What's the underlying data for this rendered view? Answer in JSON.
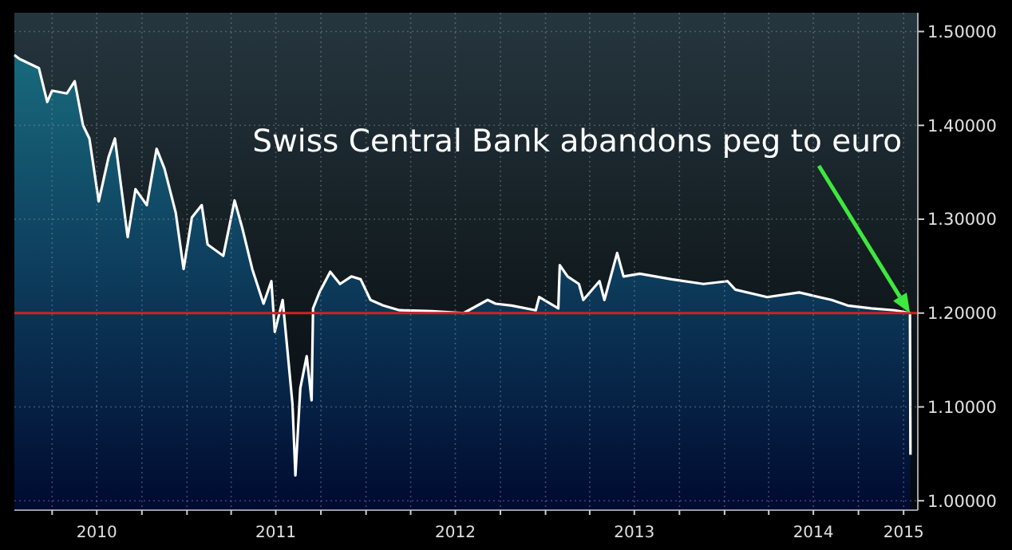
{
  "chart_data": {
    "type": "area",
    "x": [
      "2010-01-14",
      "2010-01-24",
      "2010-03-05",
      "2010-03-22",
      "2010-04-01",
      "2010-05-01",
      "2010-05-17",
      "2010-06-03",
      "2010-06-16",
      "2010-07-05",
      "2010-07-25",
      "2010-08-07",
      "2010-09-02",
      "2010-09-18",
      "2010-10-11",
      "2010-10-31",
      "2010-11-16",
      "2010-12-09",
      "2010-12-25",
      "2011-01-11",
      "2011-01-31",
      "2011-02-12",
      "2011-03-16",
      "2011-04-08",
      "2011-04-24",
      "2011-05-14",
      "2011-06-06",
      "2011-06-22",
      "2011-06-29",
      "2011-07-15",
      "2011-07-25",
      "2011-08-04",
      "2011-08-10",
      "2011-08-20",
      "2011-09-02",
      "2011-09-12",
      "2011-09-15",
      "2011-09-28",
      "2011-10-20",
      "2011-11-09",
      "2011-12-02",
      "2011-12-21",
      "2012-01-10",
      "2012-02-05",
      "2012-03-09",
      "2012-05-14",
      "2012-07-18",
      "2012-09-05",
      "2012-09-21",
      "2012-10-24",
      "2012-12-12",
      "2012-12-19",
      "2013-01-27",
      "2013-01-30",
      "2013-02-15",
      "2013-03-10",
      "2013-03-19",
      "2013-04-21",
      "2013-05-01",
      "2013-05-27",
      "2013-06-09",
      "2013-07-12",
      "2013-09-15",
      "2013-11-19",
      "2014-01-07",
      "2014-01-23",
      "2014-03-29",
      "2014-06-02",
      "2014-08-07",
      "2014-09-09",
      "2014-10-27",
      "2014-12-14",
      "2015-01-14",
      "2015-01-15"
    ],
    "series": [
      {
        "color": "#ffffff",
        "values": [
          1.475,
          1.471,
          1.461,
          1.425,
          1.437,
          1.434,
          1.447,
          1.4,
          1.386,
          1.319,
          1.366,
          1.386,
          1.281,
          1.332,
          1.315,
          1.375,
          1.354,
          1.307,
          1.247,
          1.302,
          1.315,
          1.273,
          1.261,
          1.32,
          1.29,
          1.247,
          1.21,
          1.234,
          1.18,
          1.214,
          1.159,
          1.103,
          1.027,
          1.12,
          1.154,
          1.107,
          1.205,
          1.222,
          1.244,
          1.231,
          1.239,
          1.236,
          1.214,
          1.208,
          1.203,
          1.202,
          1.2,
          1.214,
          1.21,
          1.208,
          1.203,
          1.217,
          1.205,
          1.251,
          1.239,
          1.231,
          1.214,
          1.234,
          1.214,
          1.264,
          1.239,
          1.242,
          1.236,
          1.231,
          1.234,
          1.225,
          1.217,
          1.222,
          1.214,
          1.208,
          1.205,
          1.203,
          1.2,
          1.049
        ]
      }
    ],
    "xlim": [
      "2010-01-14",
      "2015-01-30"
    ],
    "xticks": [
      {
        "value": "2010-04-01",
        "label": null
      },
      {
        "value": "2010-07-01",
        "label": "2010"
      },
      {
        "value": "2010-10-01",
        "label": null
      },
      {
        "value": "2011-01-01",
        "label": null
      },
      {
        "value": "2011-04-01",
        "label": null
      },
      {
        "value": "2011-07-01",
        "label": "2011"
      },
      {
        "value": "2011-10-01",
        "label": null
      },
      {
        "value": "2012-01-01",
        "label": null
      },
      {
        "value": "2012-04-01",
        "label": null
      },
      {
        "value": "2012-07-01",
        "label": "2012"
      },
      {
        "value": "2012-10-01",
        "label": null
      },
      {
        "value": "2013-01-01",
        "label": null
      },
      {
        "value": "2013-04-01",
        "label": null
      },
      {
        "value": "2013-07-01",
        "label": "2013"
      },
      {
        "value": "2013-10-01",
        "label": null
      },
      {
        "value": "2014-01-01",
        "label": null
      },
      {
        "value": "2014-04-01",
        "label": null
      },
      {
        "value": "2014-07-01",
        "label": "2014"
      },
      {
        "value": "2014-10-01",
        "label": null
      },
      {
        "value": "2015-01-01",
        "label": "2015"
      }
    ],
    "ylim": [
      0.99,
      1.52
    ],
    "yticks": [
      {
        "value": 1.0,
        "label": "1.00000"
      },
      {
        "value": 1.1,
        "label": "1.10000"
      },
      {
        "value": 1.2,
        "label": "1.20000"
      },
      {
        "value": 1.3,
        "label": "1.30000"
      },
      {
        "value": 1.4,
        "label": "1.40000"
      },
      {
        "value": 1.5,
        "label": "1.50000"
      }
    ],
    "grid": true,
    "ref_lines": [
      {
        "axis": "y",
        "value": 1.2,
        "color": "#d42020"
      }
    ],
    "annotations": [
      "Swiss Central Bank abandons peg to euro"
    ]
  }
}
